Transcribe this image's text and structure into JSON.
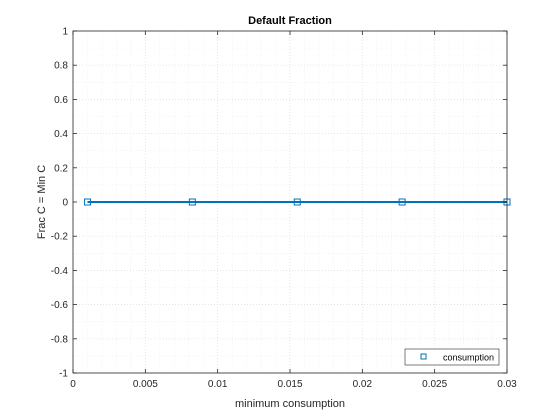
{
  "chart_data": {
    "type": "line",
    "title": "Default Fraction",
    "xlabel": "minimum consumption",
    "ylabel": "Frac C = Min C",
    "xlim": [
      0,
      0.03
    ],
    "ylim": [
      -1,
      1
    ],
    "x_ticks": [
      0,
      0.005,
      0.01,
      0.015,
      0.02,
      0.025,
      0.03
    ],
    "x_tick_labels": [
      "0",
      "0.005",
      "0.01",
      "0.015",
      "0.02",
      "0.025",
      "0.03"
    ],
    "y_ticks": [
      -1,
      -0.8,
      -0.6,
      -0.4,
      -0.2,
      0,
      0.2,
      0.4,
      0.6,
      0.8,
      1
    ],
    "y_tick_labels": [
      "-1",
      "-0.8",
      "-0.6",
      "-0.4",
      "-0.2",
      "0",
      "0.2",
      "0.4",
      "0.6",
      "0.8",
      "1"
    ],
    "grid": true,
    "legend_position": "bottom-right",
    "series": [
      {
        "name": "consumption",
        "marker": "square",
        "color": "#0072BD",
        "x": [
          0.001,
          0.00825,
          0.0155,
          0.02275,
          0.03
        ],
        "y": [
          0,
          0,
          0,
          0,
          0
        ]
      }
    ]
  }
}
